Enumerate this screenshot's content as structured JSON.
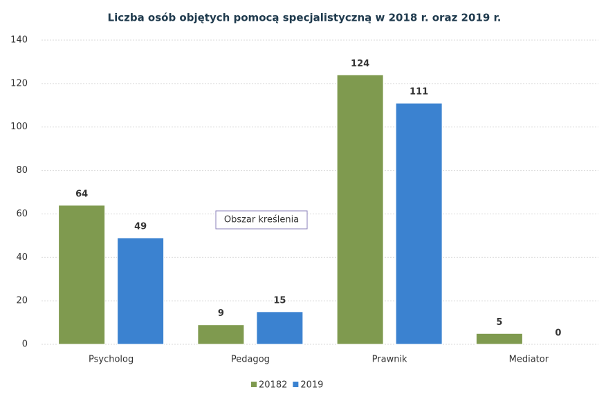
{
  "chart_data": {
    "type": "bar",
    "title": "Liczba osób objętych pomocą specjalistyczną w 2018 r. oraz 2019 r.",
    "annotation": "Obszar kreślenia",
    "categories": [
      "Psycholog",
      "Pedagog",
      "Prawnik",
      "Mediator"
    ],
    "series": [
      {
        "name": "20182",
        "color": "#7f9a4f",
        "values": [
          64,
          9,
          124,
          5
        ]
      },
      {
        "name": "2019",
        "color": "#3b82d0",
        "values": [
          49,
          15,
          111,
          0
        ]
      }
    ],
    "ylim": [
      0,
      140
    ],
    "yticks": [
      0,
      20,
      40,
      60,
      80,
      100,
      120,
      140
    ],
    "grid": true,
    "legend": "bottom"
  }
}
